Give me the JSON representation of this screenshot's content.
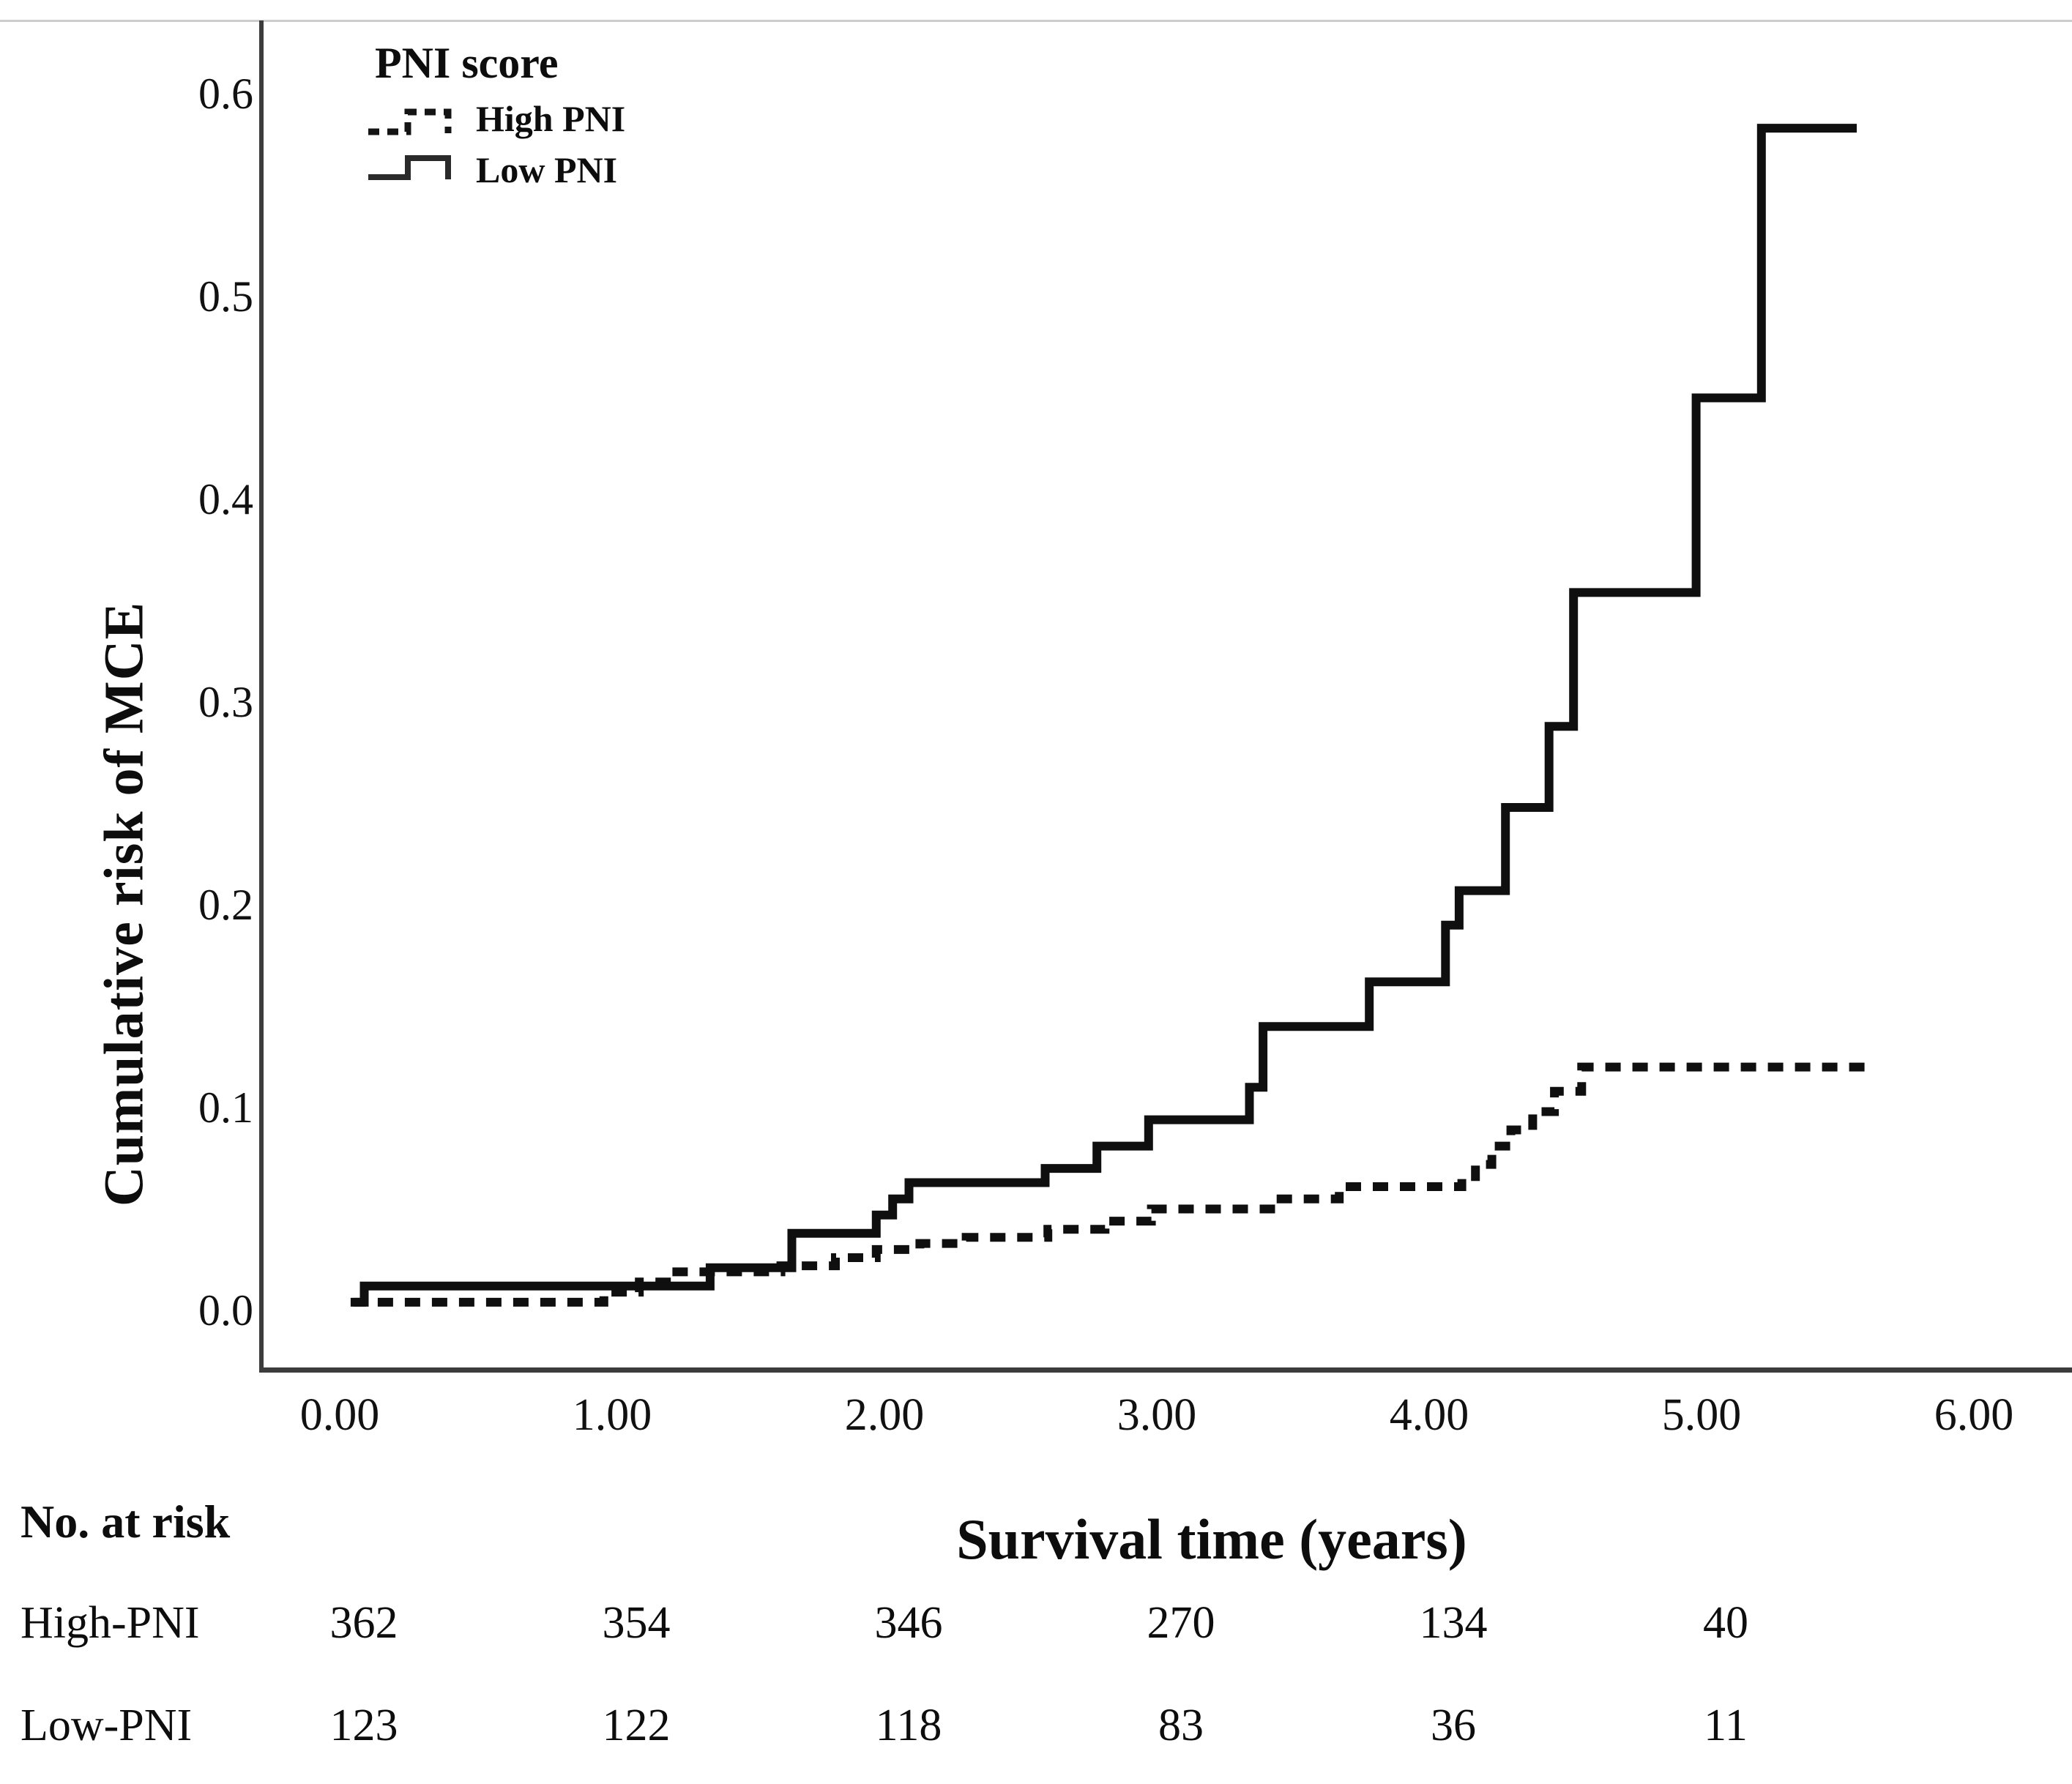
{
  "accent_colors": {
    "curve": "#0f0f0f",
    "spine": "#3c3c3c",
    "top_border": "#cdcdcd"
  },
  "chart_data": {
    "type": "line",
    "subtype": "kaplan-meier-step",
    "title": "",
    "xlabel": "Survival time (years)",
    "ylabel": "Cumulative risk of MCE",
    "xlim": [
      0,
      6
    ],
    "ylim": [
      0,
      0.6
    ],
    "grid": false,
    "x_ticks": [
      {
        "value": 0,
        "label": "0.00"
      },
      {
        "value": 1,
        "label": "1.00"
      },
      {
        "value": 2,
        "label": "2.00"
      },
      {
        "value": 3,
        "label": "3.00"
      },
      {
        "value": 4,
        "label": "4.00"
      },
      {
        "value": 5,
        "label": "5.00"
      },
      {
        "value": 6,
        "label": "6.00"
      }
    ],
    "y_ticks": [
      {
        "value": 0.0,
        "label": "0.0"
      },
      {
        "value": 0.1,
        "label": "0.1"
      },
      {
        "value": 0.2,
        "label": "0.2"
      },
      {
        "value": 0.3,
        "label": "0.3"
      },
      {
        "value": 0.4,
        "label": "0.4"
      },
      {
        "value": 0.5,
        "label": "0.5"
      },
      {
        "value": 0.6,
        "label": "0.6"
      }
    ],
    "legend": {
      "title": "PNI score",
      "position": "top-left-inside",
      "entries": [
        {
          "label": "High PNI",
          "style": "dashed"
        },
        {
          "label": "Low PNI",
          "style": "solid"
        }
      ]
    },
    "series": [
      {
        "name": "High PNI",
        "style": "dashed",
        "end_t": 5.6,
        "steps": [
          [
            0.04,
            0.004
          ],
          [
            0.97,
            0.009
          ],
          [
            1.1,
            0.014
          ],
          [
            1.22,
            0.019
          ],
          [
            1.62,
            0.022
          ],
          [
            1.82,
            0.026
          ],
          [
            1.97,
            0.03
          ],
          [
            2.13,
            0.033
          ],
          [
            2.3,
            0.036
          ],
          [
            2.6,
            0.04
          ],
          [
            2.81,
            0.044
          ],
          [
            2.98,
            0.05
          ],
          [
            3.44,
            0.055
          ],
          [
            3.67,
            0.061
          ],
          [
            4.12,
            0.066
          ],
          [
            4.17,
            0.072
          ],
          [
            4.23,
            0.081
          ],
          [
            4.3,
            0.089
          ],
          [
            4.38,
            0.098
          ],
          [
            4.46,
            0.108
          ],
          [
            4.56,
            0.12
          ]
        ]
      },
      {
        "name": "Low PNI",
        "style": "solid",
        "end_t": 5.57,
        "steps": [
          [
            0.05,
            0.004
          ],
          [
            0.09,
            0.012
          ],
          [
            1.36,
            0.021
          ],
          [
            1.66,
            0.038
          ],
          [
            1.97,
            0.047
          ],
          [
            2.03,
            0.055
          ],
          [
            2.09,
            0.063
          ],
          [
            2.59,
            0.07
          ],
          [
            2.78,
            0.081
          ],
          [
            2.97,
            0.094
          ],
          [
            3.34,
            0.11
          ],
          [
            3.39,
            0.14
          ],
          [
            3.78,
            0.162
          ],
          [
            4.06,
            0.19
          ],
          [
            4.11,
            0.207
          ],
          [
            4.28,
            0.248
          ],
          [
            4.44,
            0.288
          ],
          [
            4.53,
            0.354
          ],
          [
            4.98,
            0.45
          ],
          [
            5.22,
            0.583
          ]
        ]
      }
    ],
    "risk_table": {
      "title": "No. at risk",
      "time_values": [
        0,
        1,
        2,
        3,
        4,
        5
      ],
      "rows": [
        {
          "label": "High-PNI",
          "counts": [
            "362",
            "354",
            "346",
            "270",
            "134",
            "40"
          ]
        },
        {
          "label": "Low-PNI",
          "counts": [
            "123",
            "122",
            "118",
            "83",
            "36",
            "11"
          ]
        }
      ]
    }
  }
}
